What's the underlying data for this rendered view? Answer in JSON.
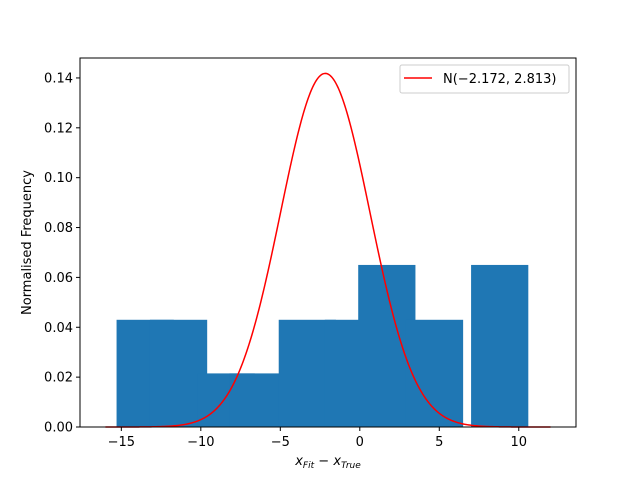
{
  "chart_data": {
    "type": "bar",
    "title": "",
    "xlabel": {
      "base": "x",
      "sub1": "Fit",
      "sub2": "True",
      "text": "x_Fit − x_True"
    },
    "ylabel": "Normalised Frequency",
    "xlim": [
      -17.6,
      13.6
    ],
    "ylim": [
      0,
      0.148
    ],
    "xticks": [
      -15,
      -10,
      -5,
      0,
      5,
      10
    ],
    "yticks": [
      0.0,
      0.02,
      0.04,
      0.06,
      0.08,
      0.1,
      0.12,
      0.14
    ],
    "bar_color": "#1f77b4",
    "bar_width": 3.6,
    "bins": [
      {
        "x": -13.5,
        "value": 0.043
      },
      {
        "x": -11.4,
        "value": 0.043
      },
      {
        "x": -8.4,
        "value": 0.0215
      },
      {
        "x": -6.4,
        "value": 0.0215
      },
      {
        "x": -3.3,
        "value": 0.043
      },
      {
        "x": -0.4,
        "value": 0.043
      },
      {
        "x": 1.7,
        "value": 0.065
      },
      {
        "x": 4.7,
        "value": 0.043
      },
      {
        "x": 8.8,
        "value": 0.065
      }
    ],
    "series": [
      {
        "name": "N(−2.172, 2.813)",
        "type": "line",
        "color": "#ff0000",
        "distribution": "normal",
        "mean": -2.172,
        "std": 2.813,
        "x_range": [
          -16,
          12
        ]
      }
    ],
    "legend": {
      "position": "top-right",
      "label": "N(−2.172, 2.813)"
    },
    "grid": false
  }
}
